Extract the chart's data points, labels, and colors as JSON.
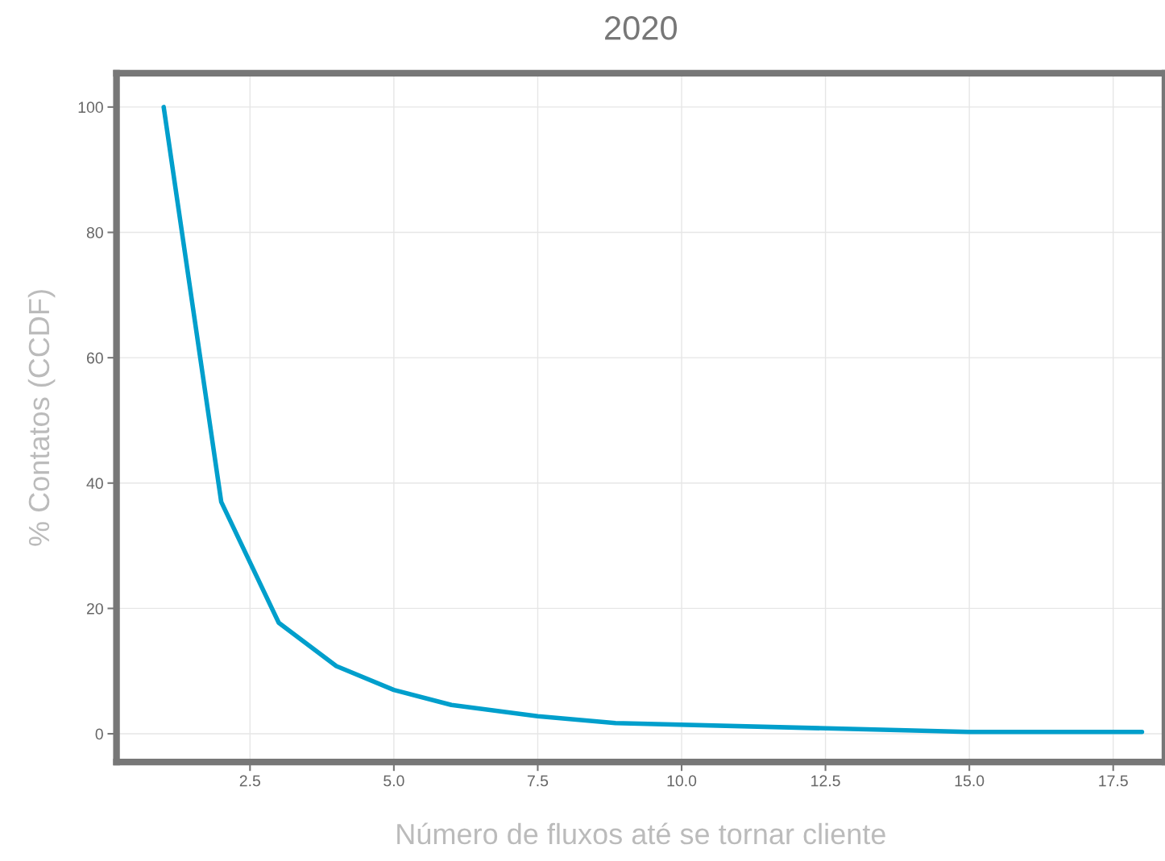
{
  "chart_data": {
    "type": "line",
    "title": "2020",
    "xlabel": "Número de fluxos até se tornar cliente",
    "ylabel": "% Contatos (CCDF)",
    "x": [
      1,
      2,
      3,
      4,
      5,
      6,
      7.5,
      8.85,
      15,
      18
    ],
    "series": [
      {
        "color": "#009fcc",
        "values": [
          100,
          37,
          17.7,
          10.8,
          7.0,
          4.6,
          2.8,
          1.7,
          0.3,
          0.3
        ]
      }
    ],
    "xlim": [
      0.18,
      18.4
    ],
    "ylim": [
      -4.5,
      105.4
    ],
    "xticks": [
      2.5,
      {
        "value": 5,
        "label": "5.0"
      },
      7.5,
      {
        "value": 10,
        "label": "10.0"
      },
      12.5,
      {
        "value": 15,
        "label": "15.0"
      },
      17.5
    ],
    "yticks": [
      0,
      20,
      40,
      60,
      80,
      100
    ],
    "grid": true,
    "marker": "none",
    "line_style": "solid"
  }
}
